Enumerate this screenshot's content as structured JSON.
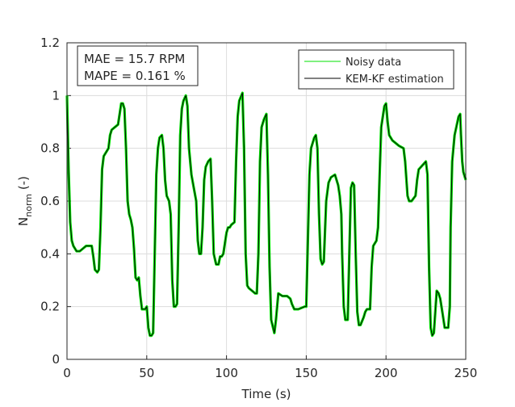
{
  "chart_data": {
    "type": "line",
    "xlabel": "Time (s)",
    "ylabel": "N",
    "ylabel_subscript": "norm",
    "ylabel_suffix": " (-)",
    "annotations": [
      "MAE = 15.7 RPM",
      "MAPE = 0.161 %"
    ],
    "legend": "upper right",
    "grid": true,
    "xlim": [
      0,
      250
    ],
    "xticks": [
      0,
      50,
      100,
      150,
      200,
      250
    ],
    "ylim": [
      0,
      1.2
    ],
    "yticks": [
      0,
      0.2,
      0.4,
      0.6,
      0.8,
      1,
      1.2
    ],
    "x": [
      0,
      1,
      2,
      3,
      4,
      6,
      8,
      10,
      12,
      14,
      15.5,
      16.5,
      17.5,
      19,
      20,
      21,
      22,
      23,
      25,
      26,
      27,
      28,
      30,
      32,
      33,
      34,
      35,
      36,
      37,
      38,
      39,
      40,
      41,
      42,
      43,
      44,
      45,
      46,
      47,
      49,
      50,
      51,
      52,
      53,
      54,
      55,
      56,
      57,
      58,
      59.5,
      60.5,
      61.5,
      62.5,
      64,
      65,
      66,
      67,
      68,
      69,
      70,
      71,
      72,
      73,
      74.5,
      75.5,
      76.5,
      78,
      79.5,
      81,
      82,
      83,
      84,
      85,
      86,
      87,
      88.5,
      90,
      91,
      92,
      93.5,
      95,
      96,
      97,
      98,
      99,
      100,
      101,
      102,
      103,
      105,
      106,
      107,
      108,
      110,
      111,
      112,
      113,
      114,
      116,
      118,
      119,
      120,
      121,
      122,
      123.5,
      125,
      126,
      127,
      128,
      130,
      131,
      132.5,
      135,
      138,
      140,
      141,
      142.5,
      145,
      149,
      150,
      151,
      152,
      153,
      155,
      156,
      157,
      158,
      159,
      160,
      161,
      162.5,
      164,
      165.5,
      168,
      170,
      171,
      172,
      172.5,
      173.5,
      174.5,
      176,
      177,
      178,
      179,
      180,
      181,
      182,
      183,
      184,
      186,
      187,
      188,
      190,
      191,
      192,
      194,
      195,
      196,
      197,
      199,
      200,
      201,
      202,
      204,
      206,
      208,
      211,
      212,
      213.5,
      214.5,
      216,
      218.5,
      219.5,
      220.5,
      222,
      225,
      226,
      227,
      228,
      229,
      230,
      231.8,
      233,
      234,
      235.3,
      236.8,
      239,
      240,
      240.5,
      241.5,
      243,
      245.5,
      246.5,
      247,
      247.8,
      248.5,
      250
    ],
    "series": [
      {
        "name": "Noisy data",
        "color": "#00e000",
        "width": 3.2,
        "values": [
          1.0,
          0.72,
          0.52,
          0.45,
          0.43,
          0.41,
          0.41,
          0.42,
          0.43,
          0.43,
          0.43,
          0.39,
          0.34,
          0.33,
          0.34,
          0.5,
          0.72,
          0.77,
          0.79,
          0.8,
          0.85,
          0.87,
          0.88,
          0.89,
          0.93,
          0.97,
          0.97,
          0.95,
          0.8,
          0.6,
          0.55,
          0.53,
          0.5,
          0.42,
          0.31,
          0.3,
          0.31,
          0.24,
          0.19,
          0.19,
          0.2,
          0.12,
          0.09,
          0.09,
          0.1,
          0.4,
          0.7,
          0.8,
          0.84,
          0.85,
          0.8,
          0.68,
          0.62,
          0.6,
          0.55,
          0.3,
          0.2,
          0.2,
          0.21,
          0.5,
          0.85,
          0.95,
          0.98,
          1.0,
          0.96,
          0.8,
          0.7,
          0.65,
          0.6,
          0.45,
          0.4,
          0.4,
          0.5,
          0.68,
          0.73,
          0.75,
          0.76,
          0.6,
          0.4,
          0.36,
          0.36,
          0.39,
          0.39,
          0.4,
          0.44,
          0.48,
          0.5,
          0.5,
          0.51,
          0.52,
          0.75,
          0.92,
          0.98,
          1.01,
          0.8,
          0.4,
          0.28,
          0.27,
          0.26,
          0.25,
          0.25,
          0.4,
          0.75,
          0.88,
          0.91,
          0.93,
          0.7,
          0.35,
          0.15,
          0.1,
          0.15,
          0.25,
          0.24,
          0.24,
          0.23,
          0.21,
          0.19,
          0.19,
          0.2,
          0.2,
          0.45,
          0.7,
          0.8,
          0.84,
          0.85,
          0.8,
          0.55,
          0.38,
          0.36,
          0.37,
          0.6,
          0.67,
          0.69,
          0.7,
          0.66,
          0.62,
          0.55,
          0.4,
          0.2,
          0.15,
          0.15,
          0.4,
          0.65,
          0.67,
          0.66,
          0.4,
          0.18,
          0.13,
          0.13,
          0.16,
          0.18,
          0.19,
          0.19,
          0.35,
          0.43,
          0.45,
          0.5,
          0.7,
          0.88,
          0.96,
          0.97,
          0.9,
          0.85,
          0.83,
          0.82,
          0.81,
          0.8,
          0.75,
          0.62,
          0.6,
          0.6,
          0.62,
          0.68,
          0.72,
          0.73,
          0.75,
          0.7,
          0.35,
          0.12,
          0.09,
          0.1,
          0.26,
          0.25,
          0.23,
          0.18,
          0.12,
          0.12,
          0.2,
          0.5,
          0.75,
          0.85,
          0.92,
          0.93,
          0.85,
          0.75,
          0.71,
          0.68
        ]
      },
      {
        "name": "KEM-KF estimation",
        "color": "#000000",
        "width": 1,
        "values": [
          1.0,
          0.72,
          0.52,
          0.45,
          0.43,
          0.41,
          0.41,
          0.42,
          0.43,
          0.43,
          0.43,
          0.39,
          0.34,
          0.33,
          0.34,
          0.5,
          0.72,
          0.77,
          0.79,
          0.8,
          0.85,
          0.87,
          0.88,
          0.89,
          0.93,
          0.97,
          0.97,
          0.95,
          0.8,
          0.6,
          0.55,
          0.53,
          0.5,
          0.42,
          0.31,
          0.3,
          0.31,
          0.24,
          0.19,
          0.19,
          0.2,
          0.12,
          0.09,
          0.09,
          0.1,
          0.4,
          0.7,
          0.8,
          0.84,
          0.85,
          0.8,
          0.68,
          0.62,
          0.6,
          0.55,
          0.3,
          0.2,
          0.2,
          0.21,
          0.5,
          0.85,
          0.95,
          0.98,
          1.0,
          0.96,
          0.8,
          0.7,
          0.65,
          0.6,
          0.45,
          0.4,
          0.4,
          0.5,
          0.68,
          0.73,
          0.75,
          0.76,
          0.6,
          0.4,
          0.36,
          0.36,
          0.39,
          0.39,
          0.4,
          0.44,
          0.48,
          0.5,
          0.5,
          0.51,
          0.52,
          0.75,
          0.92,
          0.98,
          1.01,
          0.8,
          0.4,
          0.28,
          0.27,
          0.26,
          0.25,
          0.25,
          0.4,
          0.75,
          0.88,
          0.91,
          0.93,
          0.7,
          0.35,
          0.15,
          0.1,
          0.15,
          0.25,
          0.24,
          0.24,
          0.23,
          0.21,
          0.19,
          0.19,
          0.2,
          0.2,
          0.45,
          0.7,
          0.8,
          0.84,
          0.85,
          0.8,
          0.55,
          0.38,
          0.36,
          0.37,
          0.6,
          0.67,
          0.69,
          0.7,
          0.66,
          0.62,
          0.55,
          0.4,
          0.2,
          0.15,
          0.15,
          0.4,
          0.65,
          0.67,
          0.66,
          0.4,
          0.18,
          0.13,
          0.13,
          0.16,
          0.18,
          0.19,
          0.19,
          0.35,
          0.43,
          0.45,
          0.5,
          0.7,
          0.88,
          0.96,
          0.97,
          0.9,
          0.85,
          0.83,
          0.82,
          0.81,
          0.8,
          0.75,
          0.62,
          0.6,
          0.6,
          0.62,
          0.68,
          0.72,
          0.73,
          0.75,
          0.7,
          0.35,
          0.12,
          0.09,
          0.1,
          0.26,
          0.25,
          0.23,
          0.18,
          0.12,
          0.12,
          0.2,
          0.5,
          0.75,
          0.85,
          0.92,
          0.93,
          0.85,
          0.75,
          0.71,
          0.68
        ]
      }
    ]
  }
}
